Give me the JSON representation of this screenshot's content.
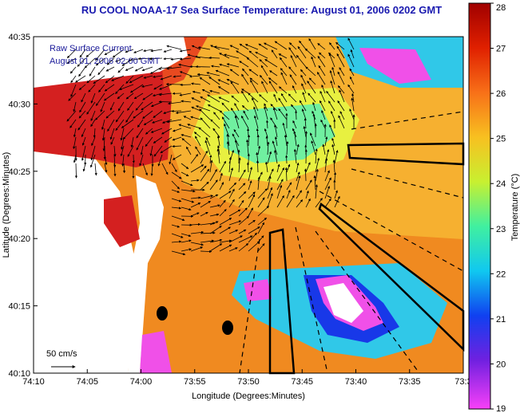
{
  "title": "RU COOL  NOAA-17  Sea Surface Temperature:  August 01, 2006 0202 GMT",
  "xlabel": "Longitude (Degrees:Minutes)",
  "ylabel": "Latitude (Degrees:Minutes)",
  "x_ticks": [
    "74:10",
    "74:05",
    "74:00",
    "73:55",
    "73:50",
    "73:45",
    "73:40",
    "73:35",
    "73:3"
  ],
  "y_ticks": [
    "40:35",
    "40:30",
    "40:25",
    "40:20",
    "40:15",
    "40:10"
  ],
  "colorbar": {
    "label": "Temperature (°C)",
    "min": 19,
    "max": 28,
    "ticks": [
      "28",
      "27",
      "26",
      "25",
      "24",
      "23",
      "22",
      "21",
      "20",
      "19"
    ]
  },
  "overlay": {
    "line1": "Raw Surface Current",
    "line2": "August 01, 2006 02:00 GMT"
  },
  "scale_label": "50 cm/s",
  "colors": {
    "title": "#1a1ab0",
    "land": "#ffffff",
    "warm_core": "#d42020",
    "shelf": "#f07818",
    "mid": "#f4c040",
    "cold_band": "#20c8e0",
    "upwelling": "#f050e8"
  }
}
